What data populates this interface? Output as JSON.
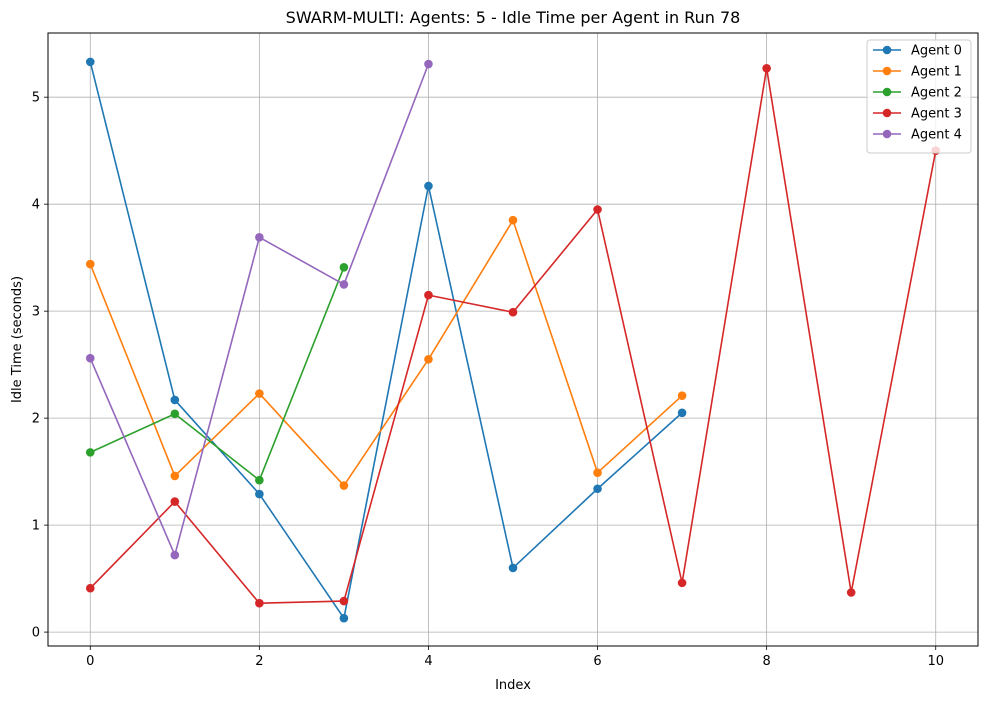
{
  "chart_data": {
    "type": "line",
    "title": "SWARM-MULTI: Agents: 5 - Idle Time per Agent in Run 78",
    "xlabel": "Index",
    "ylabel": "Idle Time (seconds)",
    "xlim": [
      -0.5,
      10.5
    ],
    "ylim": [
      -0.13,
      5.6
    ],
    "xticks": [
      0,
      2,
      4,
      6,
      8,
      10
    ],
    "yticks": [
      0,
      1,
      2,
      3,
      4,
      5
    ],
    "grid": true,
    "legend_position": "top-right",
    "series": [
      {
        "name": "Agent 0",
        "color": "#1f77b4",
        "x": [
          0,
          1,
          2,
          3,
          4,
          5,
          6,
          7
        ],
        "values": [
          5.33,
          2.17,
          1.29,
          0.13,
          4.17,
          0.6,
          1.34,
          2.05
        ]
      },
      {
        "name": "Agent 1",
        "color": "#ff7f0e",
        "x": [
          0,
          1,
          2,
          3,
          4,
          5,
          6,
          7
        ],
        "values": [
          3.44,
          1.46,
          2.23,
          1.37,
          2.55,
          3.85,
          1.49,
          2.21
        ]
      },
      {
        "name": "Agent 2",
        "color": "#2ca02c",
        "x": [
          0,
          1,
          2,
          3
        ],
        "values": [
          1.68,
          2.04,
          1.42,
          3.41
        ]
      },
      {
        "name": "Agent 3",
        "color": "#d62728",
        "x": [
          0,
          1,
          2,
          3,
          4,
          5,
          6,
          7,
          8,
          9,
          10
        ],
        "values": [
          0.41,
          1.22,
          0.27,
          0.29,
          3.15,
          2.99,
          3.95,
          0.46,
          5.27,
          0.37,
          4.5
        ]
      },
      {
        "name": "Agent 4",
        "color": "#9467bd",
        "x": [
          0,
          1,
          2,
          3,
          4
        ],
        "values": [
          2.56,
          0.72,
          3.69,
          3.25,
          5.31
        ]
      }
    ]
  }
}
